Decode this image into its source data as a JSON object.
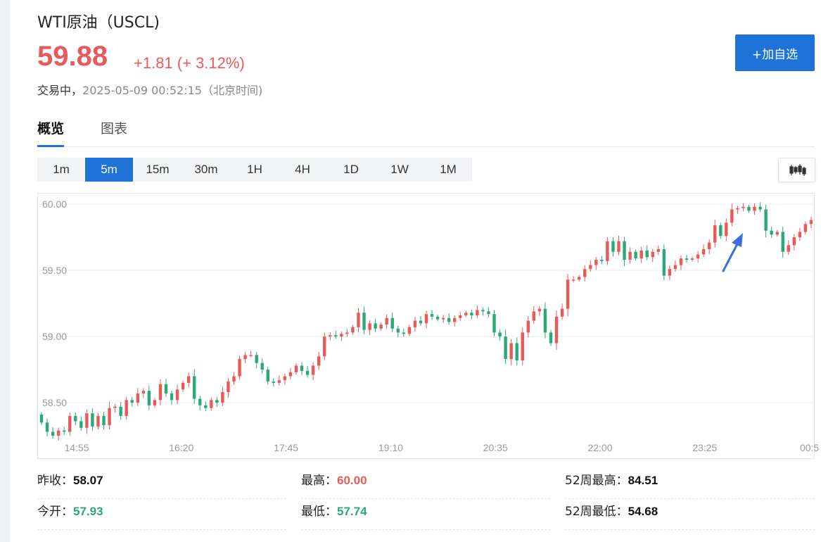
{
  "header": {
    "title": "WTI原油（USCL)",
    "price": "59.88",
    "change": "+1.81 (+ 3.12%)",
    "status_label": "交易中，",
    "status_time": "2025-05-09 00:52:15（北京时间)",
    "add_button": "+加自选"
  },
  "tabs": [
    {
      "label": "概览",
      "active": true
    },
    {
      "label": "图表",
      "active": false
    }
  ],
  "periods": [
    {
      "label": "1m",
      "active": false
    },
    {
      "label": "5m",
      "active": true
    },
    {
      "label": "15m",
      "active": false
    },
    {
      "label": "30m",
      "active": false
    },
    {
      "label": "1H",
      "active": false
    },
    {
      "label": "4H",
      "active": false
    },
    {
      "label": "1D",
      "active": false
    },
    {
      "label": "1W",
      "active": false
    },
    {
      "label": "1M",
      "active": false
    }
  ],
  "chart_data": {
    "type": "candlestick",
    "y_ticks": [
      "60.00",
      "59.50",
      "59.00",
      "58.50"
    ],
    "y_tick_values": [
      60.0,
      59.5,
      59.0,
      58.5
    ],
    "ylim": [
      58.24,
      60.08
    ],
    "x_ticks": [
      "14:55",
      "16:20",
      "17:45",
      "19:10",
      "20:35",
      "22:00",
      "23:25",
      "00:5"
    ],
    "grid": true,
    "up_color": "#e85a5a",
    "down_color": "#2aa876",
    "close_series": [
      58.35,
      58.28,
      58.25,
      58.29,
      58.28,
      58.4,
      58.36,
      58.31,
      58.42,
      58.32,
      58.4,
      58.33,
      58.46,
      58.47,
      58.4,
      58.52,
      58.5,
      58.57,
      58.59,
      58.48,
      58.52,
      58.64,
      58.57,
      58.52,
      58.6,
      58.65,
      58.7,
      58.53,
      58.48,
      58.46,
      58.52,
      58.5,
      58.58,
      58.66,
      58.7,
      58.83,
      58.86,
      58.86,
      58.8,
      58.75,
      58.66,
      58.65,
      58.67,
      58.7,
      58.73,
      58.78,
      58.74,
      58.71,
      58.78,
      58.85,
      59.0,
      59.01,
      59.0,
      59.02,
      59.03,
      59.07,
      59.18,
      59.05,
      59.1,
      59.06,
      59.09,
      59.14,
      59.06,
      59.03,
      59.02,
      59.07,
      59.12,
      59.1,
      59.17,
      59.15,
      59.13,
      59.14,
      59.11,
      59.14,
      59.16,
      59.18,
      59.16,
      59.2,
      59.19,
      59.17,
      59.03,
      59.0,
      58.83,
      58.95,
      58.82,
      59.03,
      59.12,
      59.19,
      59.21,
      59.03,
      58.95,
      59.15,
      59.21,
      59.43,
      59.43,
      59.45,
      59.51,
      59.54,
      59.58,
      59.57,
      59.72,
      59.64,
      59.72,
      59.58,
      59.64,
      59.59,
      59.65,
      59.6,
      59.64,
      59.66,
      59.46,
      59.51,
      59.54,
      59.59,
      59.58,
      59.59,
      59.62,
      59.66,
      59.71,
      59.84,
      59.76,
      59.86,
      59.96,
      59.97,
      59.98,
      59.95,
      59.98,
      59.96,
      59.8,
      59.77,
      59.79,
      59.64,
      59.69,
      59.75,
      59.79,
      59.85,
      59.88
    ],
    "stats": {
      "prev_close": 58.07,
      "open": 57.93,
      "high": 60.0,
      "low": 57.74,
      "high_52w": 84.51,
      "low_52w": 54.68
    }
  },
  "stats": [
    {
      "label": "昨收：",
      "value": "58.07",
      "tone": "dark"
    },
    {
      "label": "最高：",
      "value": "60.00",
      "tone": "red"
    },
    {
      "label": "52周最高：",
      "value": "84.51",
      "tone": "dark"
    },
    {
      "label": "今开：",
      "value": "57.93",
      "tone": "green"
    },
    {
      "label": "最低：",
      "value": "57.74",
      "tone": "green"
    },
    {
      "label": "52周最低：",
      "value": "54.68",
      "tone": "dark"
    }
  ],
  "colors": {
    "accent": "#1e72d8",
    "up": "#e85a5a",
    "down": "#2aa876"
  }
}
